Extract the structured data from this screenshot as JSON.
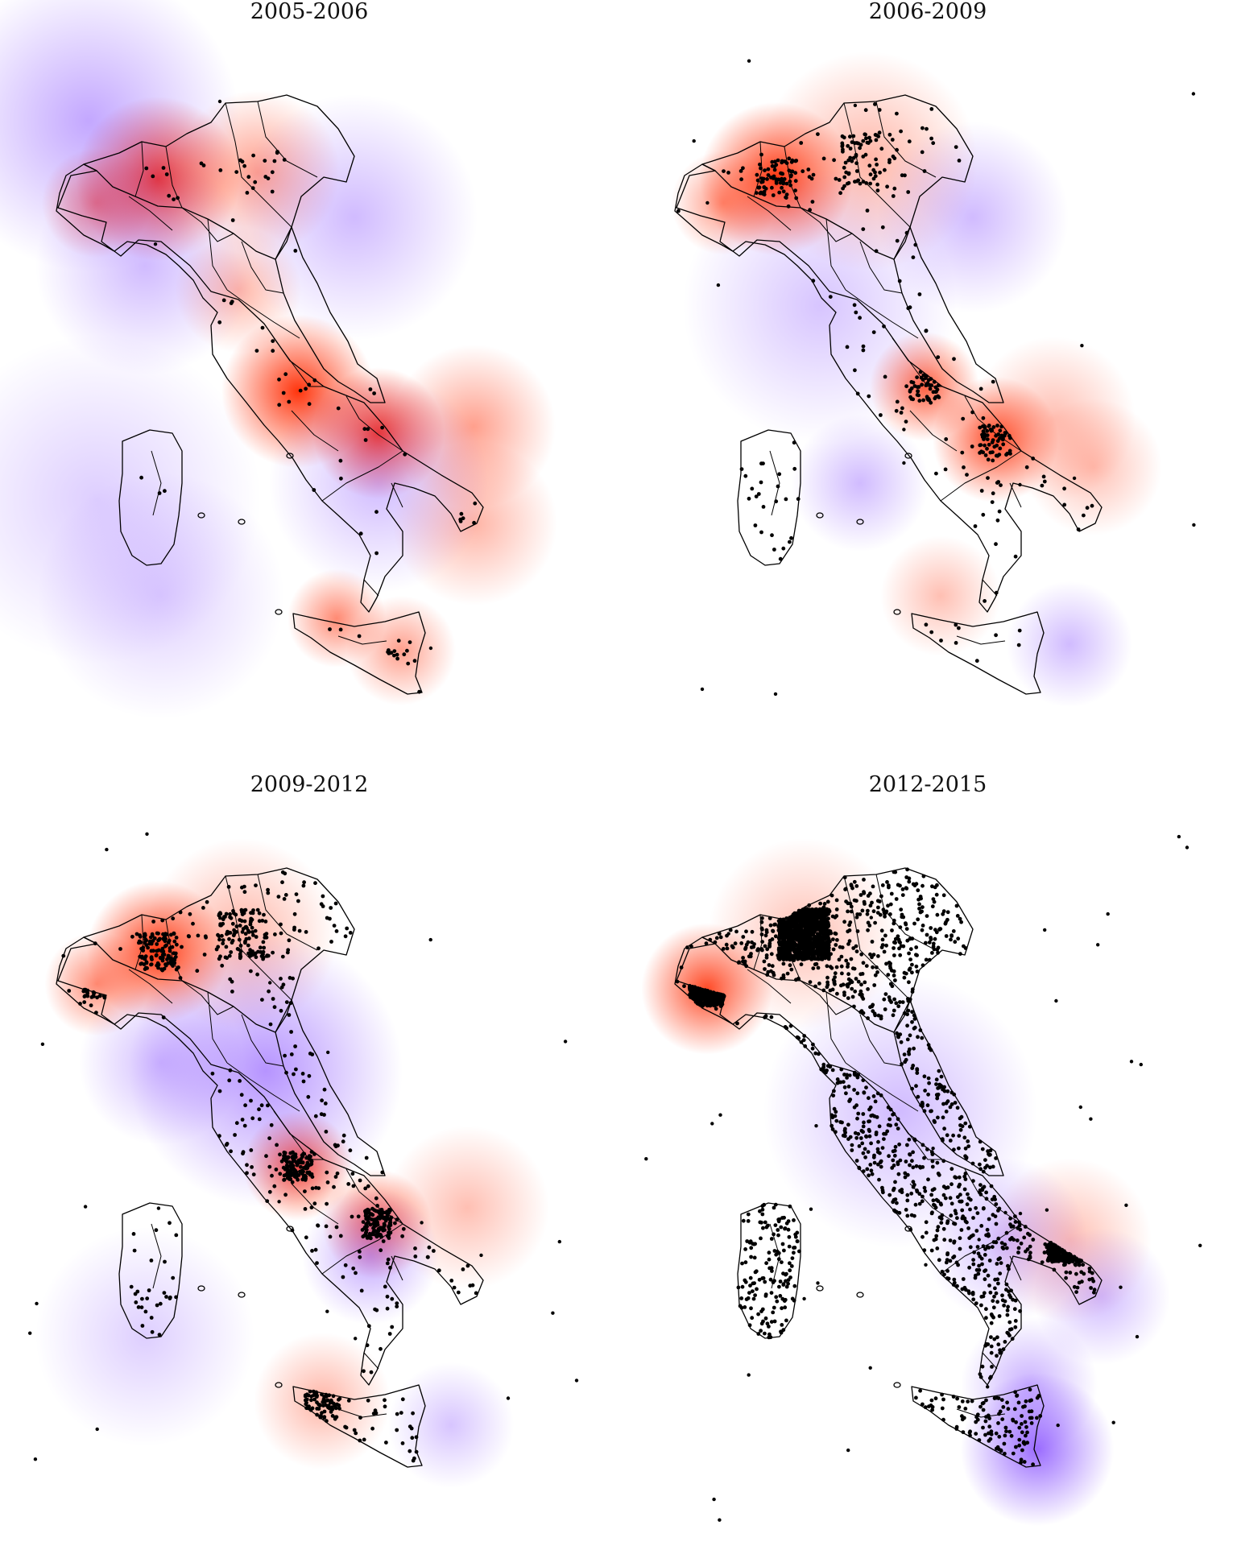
{
  "figure": {
    "panels": [
      {
        "title": "2005-2006",
        "density": "low"
      },
      {
        "title": "2006-2009",
        "density": "medium"
      },
      {
        "title": "2009-2012",
        "density": "high"
      },
      {
        "title": "2012-2015",
        "density": "very-high"
      }
    ],
    "colors": {
      "positive": "#ff2a00",
      "negative": "#7a3cff",
      "outline": "#000000",
      "points": "#000000"
    }
  }
}
